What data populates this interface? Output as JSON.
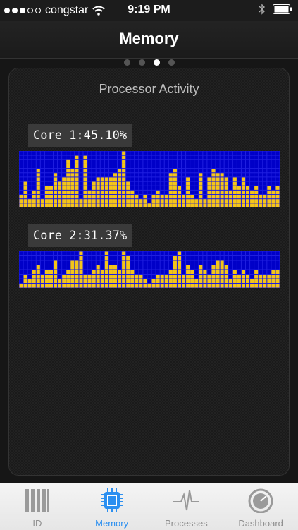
{
  "status": {
    "carrier": "congstar",
    "time": "9:19 PM",
    "signal_bars": 5,
    "signal_filled": 3
  },
  "nav": {
    "title": "Memory"
  },
  "pager": {
    "count": 4,
    "active": 2
  },
  "panel": {
    "title": "Processor Activity"
  },
  "cores": [
    {
      "label": "Core 1:",
      "value": "45.10%",
      "history": [
        3,
        6,
        2,
        4,
        9,
        2,
        5,
        5,
        8,
        6,
        7,
        11,
        9,
        12,
        2,
        12,
        4,
        6,
        7,
        7,
        7,
        7,
        8,
        9,
        14,
        6,
        4,
        3,
        2,
        3,
        1,
        3,
        4,
        3,
        3,
        8,
        9,
        5,
        3,
        7,
        3,
        2,
        8,
        2,
        7,
        9,
        8,
        8,
        7,
        4,
        7,
        5,
        7,
        5,
        4,
        5,
        3,
        3,
        5,
        4,
        5
      ]
    },
    {
      "label": "Core 2:",
      "value": "31.37%",
      "history": [
        1,
        3,
        2,
        4,
        5,
        3,
        4,
        4,
        6,
        2,
        3,
        4,
        6,
        6,
        9,
        3,
        3,
        4,
        5,
        4,
        8,
        5,
        5,
        4,
        9,
        7,
        4,
        3,
        3,
        2,
        1,
        2,
        3,
        3,
        3,
        4,
        7,
        8,
        3,
        5,
        4,
        2,
        5,
        4,
        3,
        5,
        6,
        6,
        5,
        2,
        4,
        3,
        4,
        3,
        2,
        4,
        3,
        3,
        3,
        4,
        4
      ]
    }
  ],
  "tabs": [
    {
      "label": "ID",
      "icon": "barcode-icon",
      "active": false
    },
    {
      "label": "Memory",
      "icon": "chip-icon",
      "active": true
    },
    {
      "label": "Processes",
      "icon": "pulse-icon",
      "active": false
    },
    {
      "label": "Dashboard",
      "icon": "gauge-icon",
      "active": false
    }
  ],
  "colors": {
    "chart_bg": "#0000c8",
    "bar": "#f5c518",
    "tab_active": "#2b8ff0"
  }
}
